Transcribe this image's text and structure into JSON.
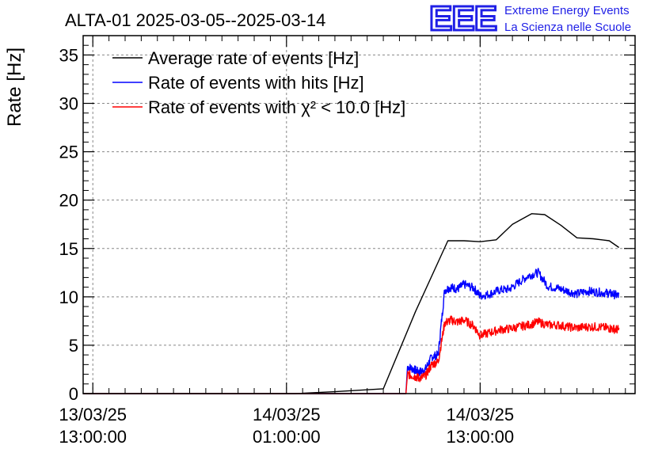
{
  "header": {
    "title": "ALTA-01 2025-03-05--2025-03-14",
    "brand_logo": "EEE",
    "brand_line1": "Extreme Energy Events",
    "brand_line2": "La Scienza nelle Scuole"
  },
  "chart_data": {
    "type": "line",
    "title": "ALTA-01 2025-03-05--2025-03-14",
    "ylabel": "Rate [Hz]",
    "xlabel": "",
    "ylim": [
      0,
      37
    ],
    "yticks": [
      0,
      5,
      10,
      15,
      20,
      25,
      30,
      35
    ],
    "xlim_hours": [
      -0.6,
      33.6
    ],
    "xticks": [
      {
        "hour": 0,
        "line1": "13/03/25",
        "line2": "13:00:00"
      },
      {
        "hour": 12,
        "line1": "14/03/25",
        "line2": "01:00:00"
      },
      {
        "hour": 24,
        "line1": "14/03/25",
        "line2": "13:00:00"
      }
    ],
    "grid": true,
    "legend_position": "top-left",
    "series": [
      {
        "name": "Average rate of events [Hz]",
        "color": "#000000",
        "x": [
          -0.6,
          12.5,
          15.0,
          18.0,
          20.0,
          22.0,
          23.0,
          24.0,
          25.0,
          26.0,
          27.2,
          28.0,
          29.0,
          30.0,
          31.0,
          32.0,
          32.6
        ],
        "y": [
          0.0,
          0.0,
          0.2,
          0.5,
          8.5,
          15.8,
          15.8,
          15.7,
          15.9,
          17.5,
          18.6,
          18.5,
          17.4,
          16.1,
          16.0,
          15.8,
          15.1
        ]
      },
      {
        "name": "Rate of events with hits [Hz]",
        "color": "#0000ff",
        "x": [
          -0.6,
          19.4,
          19.5,
          19.9,
          20.2,
          20.6,
          21.0,
          21.4,
          21.8,
          22.2,
          22.6,
          23.0,
          23.6,
          24.0,
          24.6,
          25.2,
          25.8,
          26.4,
          27.0,
          27.6,
          28.2,
          28.8,
          29.4,
          30.0,
          30.6,
          31.2,
          31.8,
          32.2,
          32.6
        ],
        "y": [
          0.0,
          0.0,
          2.8,
          2.5,
          2.2,
          2.5,
          3.8,
          4.0,
          10.7,
          11.0,
          10.8,
          11.3,
          10.9,
          10.1,
          10.3,
          10.7,
          10.8,
          11.5,
          12.2,
          12.5,
          11.1,
          10.9,
          10.6,
          10.3,
          10.6,
          10.5,
          10.4,
          10.3,
          10.1
        ]
      },
      {
        "name": "Rate of events with χ² < 10.0 [Hz]",
        "color": "#ff0000",
        "x": [
          -0.6,
          19.4,
          19.5,
          19.9,
          20.2,
          20.6,
          21.0,
          21.4,
          21.8,
          22.2,
          22.6,
          23.0,
          23.6,
          24.0,
          24.6,
          25.2,
          25.8,
          26.4,
          27.0,
          27.6,
          28.2,
          28.8,
          29.4,
          30.0,
          30.6,
          31.2,
          31.8,
          32.2,
          32.6
        ],
        "y": [
          0.0,
          0.0,
          2.0,
          1.8,
          1.6,
          1.8,
          3.0,
          3.3,
          7.3,
          7.6,
          7.4,
          7.6,
          7.0,
          6.0,
          6.3,
          6.6,
          6.7,
          6.9,
          7.1,
          7.4,
          7.1,
          7.1,
          6.9,
          6.8,
          6.9,
          6.9,
          6.8,
          6.7,
          6.6
        ]
      }
    ]
  }
}
